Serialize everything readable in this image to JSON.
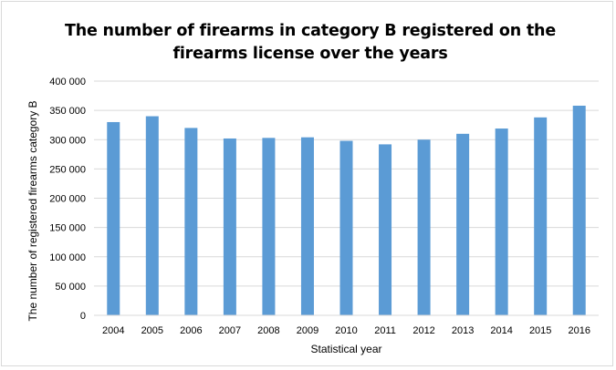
{
  "chart_data": {
    "type": "bar",
    "title": "The number of firearms in category B registered on the firearms license over the years",
    "xlabel": "Statistical year",
    "ylabel": "The number of registered firearms category B",
    "categories": [
      "2004",
      "2005",
      "2006",
      "2007",
      "2008",
      "2009",
      "2010",
      "2011",
      "2012",
      "2013",
      "2014",
      "2015",
      "2016"
    ],
    "series": [
      {
        "values": [
          330000,
          340000,
          320000,
          302000,
          303000,
          304000,
          298000,
          292000,
          300000,
          310000,
          319000,
          338000,
          358000
        ],
        "color": "#5b9bd5"
      }
    ],
    "ylim": [
      0,
      400000
    ],
    "yticks": [
      0,
      50000,
      100000,
      150000,
      200000,
      250000,
      300000,
      350000,
      400000
    ],
    "ytick_labels": [
      "0",
      "50 000",
      "100 000",
      "150 000",
      "200 000",
      "250 000",
      "300 000",
      "350 000",
      "400 000"
    ],
    "grid": true,
    "legend": "none"
  }
}
